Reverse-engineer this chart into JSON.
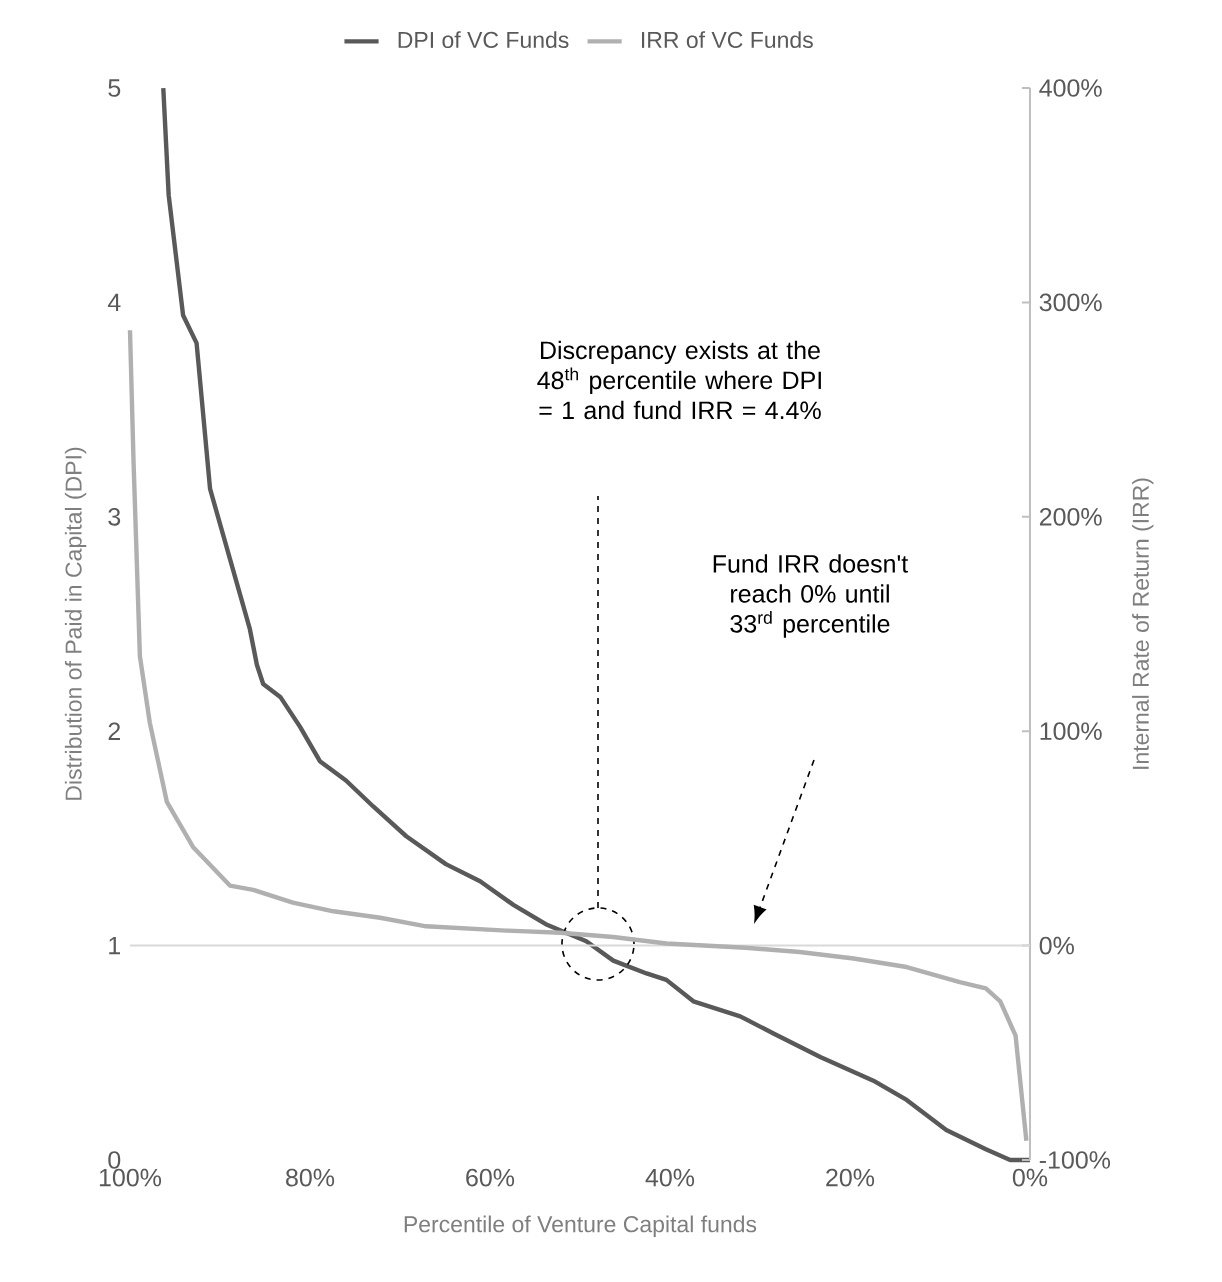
{
  "chart_data": {
    "type": "line",
    "xlabel": "Percentile of Venture Capital funds",
    "ylabel": "Distribution of Paid in Capital (DPI)",
    "y2label": "Internal Rate of Return (IRR)",
    "xlim": [
      100,
      0
    ],
    "xticks": [
      {
        "value": 100,
        "label": "100%"
      },
      {
        "value": 80,
        "label": "80%"
      },
      {
        "value": 60,
        "label": "60%"
      },
      {
        "value": 40,
        "label": "40%"
      },
      {
        "value": 20,
        "label": "20%"
      },
      {
        "value": 0,
        "label": "0%"
      }
    ],
    "ylim": [
      0,
      5
    ],
    "yticks": [
      0,
      1,
      2,
      3,
      4,
      5
    ],
    "y2lim": [
      -100,
      400
    ],
    "y2ticks": [
      {
        "value": -100,
        "label": "-100%"
      },
      {
        "value": 0,
        "label": "0%"
      },
      {
        "value": 100,
        "label": "100%"
      },
      {
        "value": 200,
        "label": "200%"
      },
      {
        "value": 300,
        "label": "300%"
      },
      {
        "value": 400,
        "label": "400%"
      }
    ],
    "legend": "top",
    "ref_lines": [
      {
        "axis": "y2",
        "value": 0,
        "color": "#d9d9d9"
      }
    ],
    "series": [
      {
        "name": "DPI of VC Funds",
        "color": "#595959",
        "x": [
          96.3,
          95.7,
          94.1,
          92.6,
          91.1,
          86.7,
          85.9,
          85.2,
          83.3,
          81.1,
          78.9,
          76,
          73,
          69.3,
          64.9,
          61.1,
          57.4,
          53.8,
          49.3,
          46.3,
          42.6,
          40.4,
          37.4,
          32.2,
          28.5,
          23.3,
          17.4,
          13.7,
          9.3,
          4.9,
          2.2,
          0
        ],
        "values": [
          5.0,
          4.5,
          3.94,
          3.81,
          3.13,
          2.48,
          2.31,
          2.22,
          2.16,
          2.02,
          1.86,
          1.77,
          1.65,
          1.51,
          1.38,
          1.3,
          1.19,
          1.1,
          1.02,
          0.93,
          0.87,
          0.84,
          0.74,
          0.67,
          0.59,
          0.48,
          0.37,
          0.28,
          0.14,
          0.05,
          0,
          0
        ]
      },
      {
        "name": "IRR of VC Funds",
        "color": "#b0b0b0",
        "axis": "y2",
        "x": [
          100,
          99.6,
          98.9,
          97.8,
          95.9,
          93,
          88.9,
          86.3,
          81.9,
          77.4,
          72.2,
          67.1,
          58.2,
          52.2,
          46.3,
          40.4,
          31.6,
          25.6,
          19.6,
          13.7,
          7.8,
          4.9,
          3.3,
          1.6,
          0.4
        ],
        "values": [
          287,
          225,
          135,
          104,
          67,
          46,
          28,
          26,
          20,
          16,
          13,
          9,
          7,
          6,
          4,
          1,
          -1,
          -3,
          -6,
          -10,
          -17,
          -20,
          -26,
          -42,
          -91
        ]
      }
    ],
    "annotations": [
      "Discrepancy exists at the 48$^{th}$ percentile where DPI = 1 and fund IRR = 4.4%",
      "Fund IRR doesn't reach 0% until 33$^{rd}$ percentile"
    ]
  }
}
